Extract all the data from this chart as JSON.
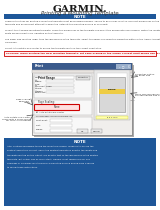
{
  "title": "Printing a Mounting Template",
  "garmin_logo": "GARMIN.",
  "page_bg": "#ffffff",
  "note_bg": "#1e5799",
  "note_text_color": "#ffffff",
  "note_label": "NOTE",
  "caution_text_color": "#cc0000",
  "body_text_color": "#333333",
  "dialog_title_bar": "#4a6fa5",
  "highlight_red": "#cc0000",
  "annotation_color": "#555555",
  "bottom_note_bg": "#1e5799"
}
